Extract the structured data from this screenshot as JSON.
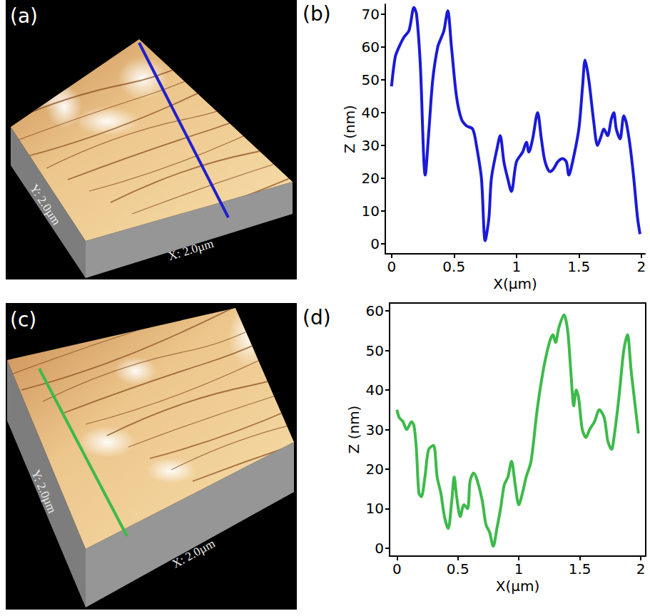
{
  "chart_data": [
    {
      "panel": "(b)",
      "type": "line",
      "color": "#1a1ad8",
      "xlabel": "X(µm)",
      "ylabel": "Z (nm)",
      "x": [
        0,
        0.03,
        0.06,
        0.1,
        0.14,
        0.18,
        0.2,
        0.23,
        0.27,
        0.3,
        0.33,
        0.37,
        0.4,
        0.42,
        0.45,
        0.48,
        0.52,
        0.56,
        0.6,
        0.65,
        0.68,
        0.72,
        0.75,
        0.78,
        0.8,
        0.85,
        0.87,
        0.9,
        0.93,
        0.96,
        1,
        1.05,
        1.08,
        1.1,
        1.13,
        1.17,
        1.2,
        1.23,
        1.27,
        1.3,
        1.33,
        1.37,
        1.4,
        1.42,
        1.45,
        1.5,
        1.53,
        1.55,
        1.58,
        1.62,
        1.65,
        1.68,
        1.7,
        1.73,
        1.76,
        1.78,
        1.8,
        1.83,
        1.86,
        1.88,
        1.91,
        1.94,
        1.97,
        1.99
      ],
      "values": [
        48,
        57,
        60,
        63,
        65,
        72,
        70,
        55,
        21,
        35,
        50,
        60,
        63,
        65,
        71,
        60,
        45,
        38,
        36,
        35,
        30,
        20,
        1,
        8,
        20,
        30,
        33,
        25,
        20,
        16,
        25,
        28,
        31,
        28,
        32,
        40,
        32,
        25,
        22,
        23,
        25,
        26,
        25,
        21,
        25,
        35,
        48,
        56,
        50,
        37,
        30,
        33,
        35,
        33,
        38,
        40,
        35,
        32,
        39,
        37,
        30,
        20,
        8,
        3
      ],
      "xlim": [
        -0.05,
        2.03
      ],
      "xticks": [
        0,
        0.5,
        1,
        1.5,
        2
      ],
      "ylim": [
        -3,
        73
      ],
      "yticks": [
        0,
        10,
        20,
        30,
        40,
        50,
        60,
        70
      ]
    },
    {
      "panel": "(d)",
      "type": "line",
      "color": "#3dba4a",
      "xlabel": "X(µm)",
      "ylabel": "Z (nm)",
      "x": [
        0,
        0.02,
        0.05,
        0.08,
        0.1,
        0.12,
        0.14,
        0.16,
        0.18,
        0.2,
        0.23,
        0.26,
        0.3,
        0.33,
        0.36,
        0.39,
        0.42,
        0.45,
        0.47,
        0.49,
        0.52,
        0.55,
        0.58,
        0.6,
        0.63,
        0.66,
        0.7,
        0.73,
        0.76,
        0.79,
        0.82,
        0.85,
        0.88,
        0.91,
        0.94,
        0.97,
        1,
        1.03,
        1.06,
        1.1,
        1.15,
        1.2,
        1.25,
        1.28,
        1.3,
        1.33,
        1.37,
        1.4,
        1.43,
        1.45,
        1.47,
        1.49,
        1.52,
        1.55,
        1.58,
        1.62,
        1.66,
        1.7,
        1.73,
        1.76,
        1.78,
        1.82,
        1.86,
        1.89,
        1.92,
        1.95,
        1.98
      ],
      "values": [
        35,
        33,
        32,
        30,
        31,
        32,
        31,
        25,
        14,
        13,
        18,
        25,
        26,
        18,
        14,
        8,
        5,
        12,
        18,
        13,
        8,
        11,
        10,
        17,
        19,
        17,
        12,
        6,
        4,
        0.5,
        5,
        10,
        16,
        18,
        22,
        16,
        11,
        14,
        18,
        22,
        35,
        45,
        52,
        54,
        52,
        56,
        59,
        55,
        43,
        36,
        40,
        38,
        30,
        28,
        30,
        32,
        35,
        33,
        27,
        25,
        28,
        38,
        50,
        54,
        45,
        37,
        29
      ],
      "xlim": [
        -0.06,
        2.04
      ],
      "xticks": [
        0,
        0.5,
        1,
        1.5,
        2
      ],
      "ylim": [
        -2,
        62
      ],
      "yticks": [
        0,
        10,
        20,
        30,
        40,
        50,
        60
      ]
    }
  ],
  "images": [
    {
      "panel": "(a)",
      "y_label": "Y: 2.0µm",
      "x_label": "X: 2.0µm",
      "line_color": "#2020cc"
    },
    {
      "panel": "(c)",
      "y_label": "Y: 2.0µm",
      "x_label": "X: 2.0µm",
      "line_color": "#3dba4a"
    }
  ]
}
